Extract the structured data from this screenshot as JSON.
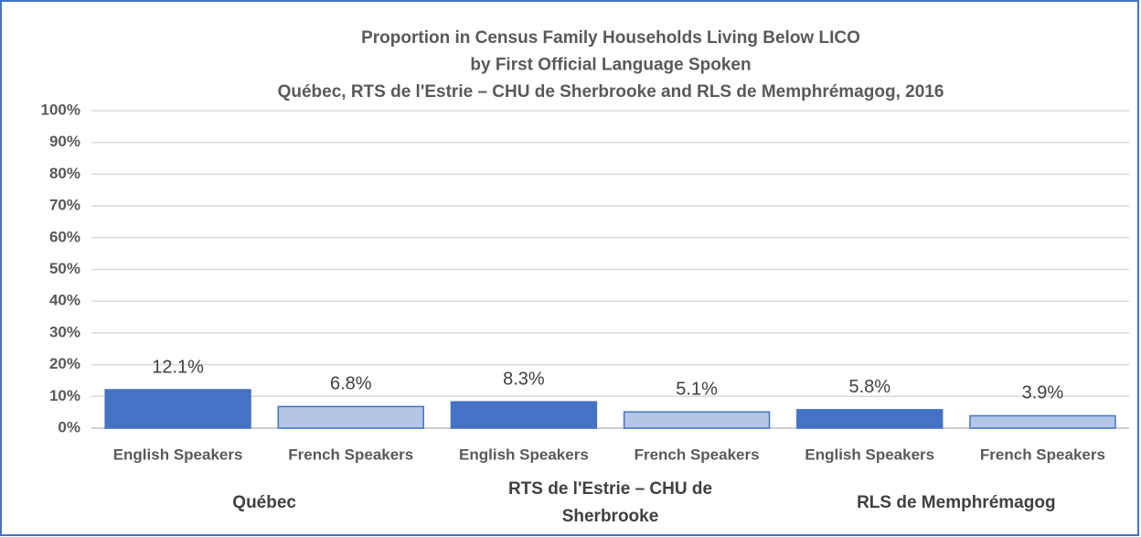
{
  "chart_data": {
    "type": "bar",
    "title": [
      "Proportion in Census Family Households Living Below LICO",
      "by First Official Language Spoken",
      "Québec, RTS de l'Estrie – CHU de Sherbrooke and RLS de Memphrémagog, 2016"
    ],
    "groups": [
      {
        "name": "Québec",
        "categories": [
          "English Speakers",
          "French Speakers"
        ],
        "values": [
          12.1,
          6.8
        ],
        "value_labels": [
          "12.1%",
          "6.8%"
        ]
      },
      {
        "name": "RTS de l'Estrie – CHU de Sherbrooke",
        "categories": [
          "English Speakers",
          "French Speakers"
        ],
        "values": [
          8.3,
          5.1
        ],
        "value_labels": [
          "8.3%",
          "5.1%"
        ]
      },
      {
        "name": "RLS de Memphrémagog",
        "categories": [
          "English Speakers",
          "French Speakers"
        ],
        "values": [
          5.8,
          3.9
        ],
        "value_labels": [
          "5.8%",
          "3.9%"
        ]
      }
    ],
    "colors": [
      "#4472c4",
      "#b4c7e7"
    ],
    "ylim": [
      0,
      100
    ],
    "yticks": [
      {
        "value": 0,
        "label": "0%"
      },
      {
        "value": 10,
        "label": "10%"
      },
      {
        "value": 20,
        "label": "20%"
      },
      {
        "value": 30,
        "label": "30%"
      },
      {
        "value": 40,
        "label": "40%"
      },
      {
        "value": 50,
        "label": "50%"
      },
      {
        "value": 60,
        "label": "60%"
      },
      {
        "value": 70,
        "label": "70%"
      },
      {
        "value": 80,
        "label": "80%"
      },
      {
        "value": 90,
        "label": "90%"
      },
      {
        "value": 100,
        "label": "100%"
      }
    ],
    "grid": true
  }
}
